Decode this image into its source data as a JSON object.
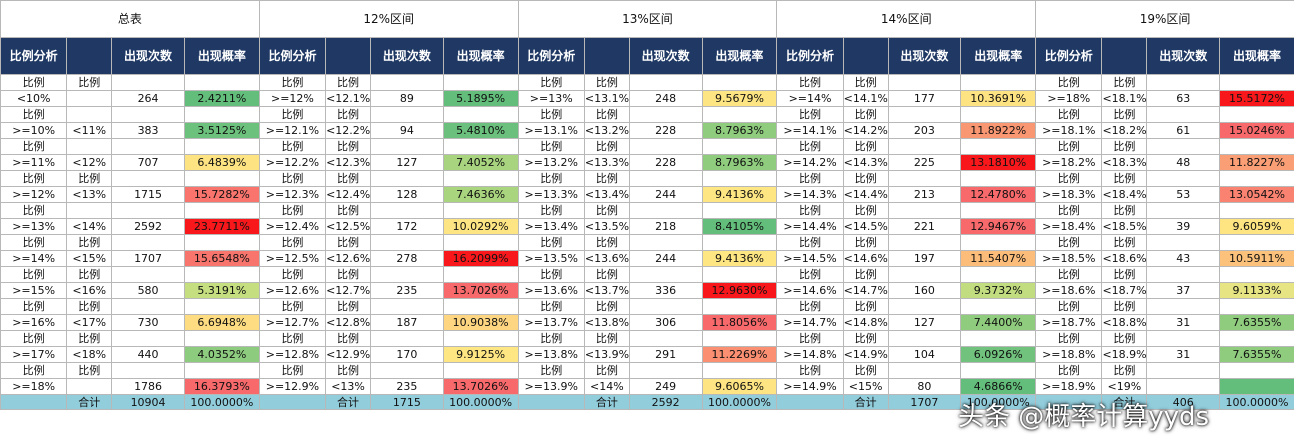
{
  "sections": [
    {
      "title": "总表",
      "headers": [
        "比例分析",
        "",
        "出现次数",
        "出现概率"
      ],
      "rows": [
        {
          "a": "比例",
          "b": "比例",
          "lo": "<10%",
          "hi": "",
          "count": "264",
          "prob": "2.4211%",
          "color": "#63be7b"
        },
        {
          "a": "比例",
          "b": "",
          "lo": ">=10%",
          "hi": "<11%",
          "count": "383",
          "prob": "3.5125%",
          "color": "#6cc17c"
        },
        {
          "a": "比例",
          "b": "",
          "lo": ">=11%",
          "hi": "<12%",
          "count": "707",
          "prob": "6.4839%",
          "color": "#fde382"
        },
        {
          "a": "比例",
          "b": "比例",
          "lo": ">=12%",
          "hi": "<13%",
          "count": "1715",
          "prob": "15.7282%",
          "color": "#f8746d"
        },
        {
          "a": "比例",
          "b": "",
          "lo": ">=13%",
          "hi": "<14%",
          "count": "2592",
          "prob": "23.7711%",
          "color": "#f8181c"
        },
        {
          "a": "比例",
          "b": "比例",
          "lo": ">=14%",
          "hi": "<15%",
          "count": "1707",
          "prob": "15.6548%",
          "color": "#f8756d"
        },
        {
          "a": "比例",
          "b": "比例",
          "lo": ">=15%",
          "hi": "<16%",
          "count": "580",
          "prob": "5.3191%",
          "color": "#c5de80"
        },
        {
          "a": "比例",
          "b": "比例",
          "lo": ">=16%",
          "hi": "<17%",
          "count": "730",
          "prob": "6.6948%",
          "color": "#fedc81"
        },
        {
          "a": "比例",
          "b": "比例",
          "lo": ">=17%",
          "hi": "<18%",
          "count": "440",
          "prob": "4.0352%",
          "color": "#8dcb7e"
        },
        {
          "a": "比例",
          "b": "比例",
          "lo": ">=18%",
          "hi": "",
          "count": "1786",
          "prob": "16.3793%",
          "color": "#f8696b"
        }
      ],
      "total": {
        "label": "合计",
        "count": "10904",
        "prob": "100.0000%"
      }
    },
    {
      "title": "12%区间",
      "headers": [
        "比例分析",
        "",
        "出现次数",
        "出现概率"
      ],
      "rows": [
        {
          "a": "比例",
          "b": "比例",
          "lo": ">=12%",
          "hi": "<12.1%",
          "count": "89",
          "prob": "5.1895%",
          "color": "#63be7b"
        },
        {
          "a": "比例",
          "b": "比例",
          "lo": ">=12.1%",
          "hi": "<12.2%",
          "count": "94",
          "prob": "5.4810%",
          "color": "#6ac07c"
        },
        {
          "a": "比例",
          "b": "比例",
          "lo": ">=12.2%",
          "hi": "<12.3%",
          "count": "127",
          "prob": "7.4052%",
          "color": "#a8d47f"
        },
        {
          "a": "比例",
          "b": "比例",
          "lo": ">=12.3%",
          "hi": "<12.4%",
          "count": "128",
          "prob": "7.4636%",
          "color": "#aad57f"
        },
        {
          "a": "比例",
          "b": "比例",
          "lo": ">=12.4%",
          "hi": "<12.5%",
          "count": "172",
          "prob": "10.0292%",
          "color": "#fee583"
        },
        {
          "a": "比例",
          "b": "比例",
          "lo": ">=12.5%",
          "hi": "<12.6%",
          "count": "278",
          "prob": "16.2099%",
          "color": "#f8181c"
        },
        {
          "a": "比例",
          "b": "比例",
          "lo": ">=12.6%",
          "hi": "<12.7%",
          "count": "235",
          "prob": "13.7026%",
          "color": "#f8696b"
        },
        {
          "a": "比例",
          "b": "比例",
          "lo": ">=12.7%",
          "hi": "<12.8%",
          "count": "187",
          "prob": "10.9038%",
          "color": "#fed580"
        },
        {
          "a": "比例",
          "b": "比例",
          "lo": ">=12.8%",
          "hi": "<12.9%",
          "count": "170",
          "prob": "9.9125%",
          "color": "#fee783"
        },
        {
          "a": "比例",
          "b": "比例",
          "lo": ">=12.9%",
          "hi": "<13%",
          "count": "235",
          "prob": "13.7026%",
          "color": "#f8696b"
        }
      ],
      "total": {
        "label": "合计",
        "count": "1715",
        "prob": "100.0000%"
      }
    },
    {
      "title": "13%区间",
      "headers": [
        "比例分析",
        "",
        "出现次数",
        "出现概率"
      ],
      "rows": [
        {
          "a": "比例",
          "b": "比例",
          "lo": ">=13%",
          "hi": "<13.1%",
          "count": "248",
          "prob": "9.5679%",
          "color": "#fee583"
        },
        {
          "a": "比例",
          "b": "比例",
          "lo": ">=13.1%",
          "hi": "<13.2%",
          "count": "228",
          "prob": "8.7963%",
          "color": "#8fcc7e"
        },
        {
          "a": "比例",
          "b": "比例",
          "lo": ">=13.2%",
          "hi": "<13.3%",
          "count": "228",
          "prob": "8.7963%",
          "color": "#8fcc7e"
        },
        {
          "a": "比例",
          "b": "比例",
          "lo": ">=13.3%",
          "hi": "<13.4%",
          "count": "244",
          "prob": "9.4136%",
          "color": "#fee683"
        },
        {
          "a": "比例",
          "b": "比例",
          "lo": ">=13.4%",
          "hi": "<13.5%",
          "count": "218",
          "prob": "8.4105%",
          "color": "#63be7b"
        },
        {
          "a": "比例",
          "b": "比例",
          "lo": ">=13.5%",
          "hi": "<13.6%",
          "count": "244",
          "prob": "9.4136%",
          "color": "#fee683"
        },
        {
          "a": "比例",
          "b": "比例",
          "lo": ">=13.6%",
          "hi": "<13.7%",
          "count": "336",
          "prob": "12.9630%",
          "color": "#f8181c"
        },
        {
          "a": "比例",
          "b": "比例",
          "lo": ">=13.7%",
          "hi": "<13.8%",
          "count": "306",
          "prob": "11.8056%",
          "color": "#f8696b"
        },
        {
          "a": "比例",
          "b": "比例",
          "lo": ">=13.8%",
          "hi": "<13.9%",
          "count": "291",
          "prob": "11.2269%",
          "color": "#fa8f72"
        },
        {
          "a": "比例",
          "b": "比例",
          "lo": ">=13.9%",
          "hi": "<14%",
          "count": "249",
          "prob": "9.6065%",
          "color": "#fee482"
        }
      ],
      "total": {
        "label": "合计",
        "count": "2592",
        "prob": "100.0000%"
      }
    },
    {
      "title": "14%区间",
      "headers": [
        "比例分析",
        "",
        "出现次数",
        "出现概率"
      ],
      "rows": [
        {
          "a": "比例",
          "b": "比例",
          "lo": ">=14%",
          "hi": "<14.1%",
          "count": "177",
          "prob": "10.3691%",
          "color": "#fee382"
        },
        {
          "a": "比例",
          "b": "比例",
          "lo": ">=14.1%",
          "hi": "<14.2%",
          "count": "203",
          "prob": "11.8922%",
          "color": "#fa9773"
        },
        {
          "a": "比例",
          "b": "比例",
          "lo": ">=14.2%",
          "hi": "<14.3%",
          "count": "225",
          "prob": "13.1810%",
          "color": "#f8181c"
        },
        {
          "a": "比例",
          "b": "比例",
          "lo": ">=14.3%",
          "hi": "<14.4%",
          "count": "213",
          "prob": "12.4780%",
          "color": "#f8696b"
        },
        {
          "a": "比例",
          "b": "比例",
          "lo": ">=14.4%",
          "hi": "<14.5%",
          "count": "221",
          "prob": "12.9467%",
          "color": "#f8696b"
        },
        {
          "a": "比例",
          "b": "比例",
          "lo": ">=14.5%",
          "hi": "<14.6%",
          "count": "197",
          "prob": "11.5407%",
          "color": "#fcbd7b"
        },
        {
          "a": "比例",
          "b": "比例",
          "lo": ">=14.6%",
          "hi": "<14.7%",
          "count": "160",
          "prob": "9.3732%",
          "color": "#c2dd80"
        },
        {
          "a": "比例",
          "b": "比例",
          "lo": ">=14.7%",
          "hi": "<14.8%",
          "count": "127",
          "prob": "7.4400%",
          "color": "#8fcc7e"
        },
        {
          "a": "比例",
          "b": "比例",
          "lo": ">=14.8%",
          "hi": "<14.9%",
          "count": "104",
          "prob": "6.0926%",
          "color": "#70c27c"
        },
        {
          "a": "比例",
          "b": "比例",
          "lo": ">=14.9%",
          "hi": "<15%",
          "count": "80",
          "prob": "4.6866%",
          "color": "#63be7b"
        }
      ],
      "total": {
        "label": "合计",
        "count": "1707",
        "prob": "100.0000%"
      }
    },
    {
      "title": "19%区间",
      "headers": [
        "比例分析",
        "",
        "出现次数",
        "出现概率"
      ],
      "rows": [
        {
          "a": "比例",
          "b": "比例",
          "lo": ">=18%",
          "hi": "<18.1%",
          "count": "63",
          "prob": "15.5172%",
          "color": "#f8181c"
        },
        {
          "a": "比例",
          "b": "比例",
          "lo": ">=18.1%",
          "hi": "<18.2%",
          "count": "61",
          "prob": "15.0246%",
          "color": "#f8696b"
        },
        {
          "a": "比例",
          "b": "比例",
          "lo": ">=18.2%",
          "hi": "<18.3%",
          "count": "48",
          "prob": "11.8227%",
          "color": "#fa9e75"
        },
        {
          "a": "比例",
          "b": "比例",
          "lo": ">=18.3%",
          "hi": "<18.4%",
          "count": "53",
          "prob": "13.0542%",
          "color": "#f98270"
        },
        {
          "a": "比例",
          "b": "比例",
          "lo": ">=18.4%",
          "hi": "<18.5%",
          "count": "39",
          "prob": "9.6059%",
          "color": "#fee582"
        },
        {
          "a": "比例",
          "b": "比例",
          "lo": ">=18.5%",
          "hi": "<18.6%",
          "count": "43",
          "prob": "10.5911%",
          "color": "#fcc27c"
        },
        {
          "a": "比例",
          "b": "比例",
          "lo": ">=18.6%",
          "hi": "<18.7%",
          "count": "37",
          "prob": "9.1133%",
          "color": "#e7e483"
        },
        {
          "a": "比例",
          "b": "比例",
          "lo": ">=18.7%",
          "hi": "<18.8%",
          "count": "31",
          "prob": "7.6355%",
          "color": "#8fcc7e"
        },
        {
          "a": "比例",
          "b": "比例",
          "lo": ">=18.8%",
          "hi": "<18.9%",
          "count": "31",
          "prob": "7.6355%",
          "color": "#8fcc7e"
        },
        {
          "a": "比例",
          "b": "比例",
          "lo": ">=18.9%",
          "hi": "<19%",
          "count": "",
          "prob": "",
          "color": "#63be7b"
        }
      ],
      "total": {
        "label": "合计",
        "count": "406",
        "prob": "100.0000%"
      }
    }
  ],
  "watermark": "头条 @概率计算yyds"
}
